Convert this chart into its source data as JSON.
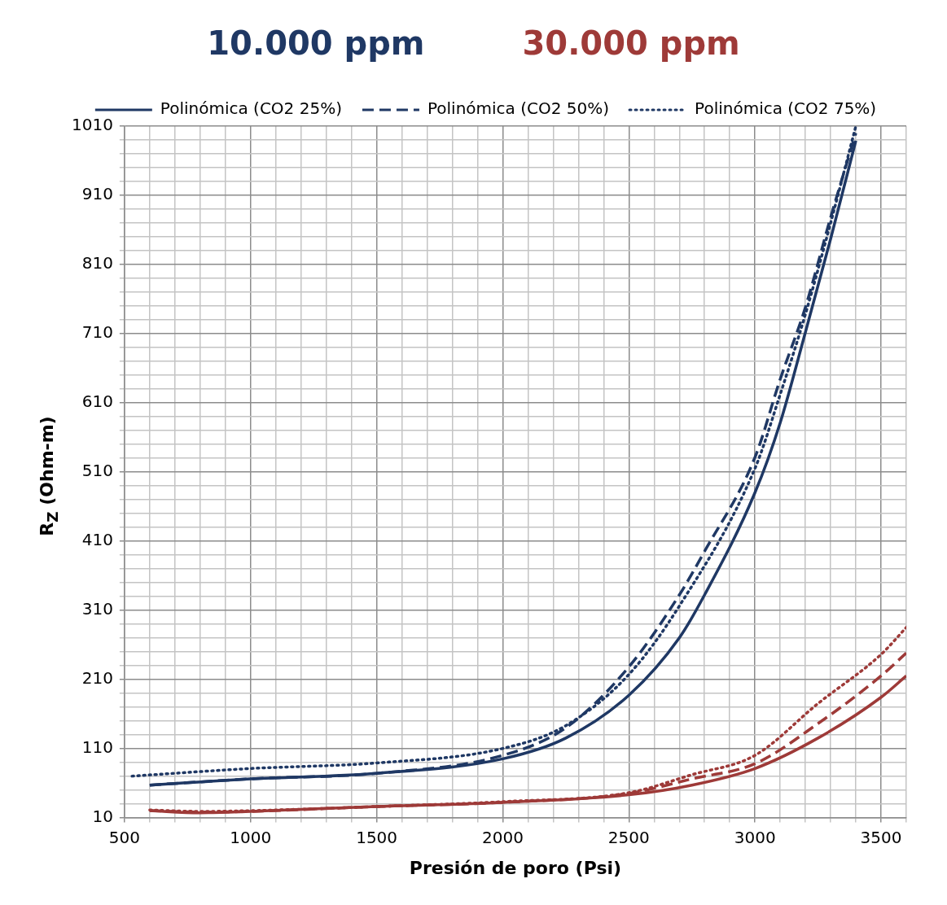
{
  "chart_data": {
    "type": "line",
    "title": "10.000 ppm",
    "subtitle": "30.000 ppm",
    "xlabel": "Presión de poro (Psi)",
    "ylabel": "R$_{Z}$ (Ohm-m)",
    "xlim": [
      500,
      3600
    ],
    "ylim": [
      10,
      1010
    ],
    "xticks": [
      500,
      {
        "value": 600,
        "label": null
      },
      {
        "value": 700,
        "label": null
      },
      {
        "value": 800,
        "label": null
      },
      {
        "value": 900,
        "label": null
      },
      1000,
      {
        "value": 1100,
        "label": null
      },
      {
        "value": 1200,
        "label": null
      },
      {
        "value": 1300,
        "label": null
      },
      {
        "value": 1400,
        "label": null
      },
      1500,
      {
        "value": 1600,
        "label": null
      },
      {
        "value": 1700,
        "label": null
      },
      {
        "value": 1800,
        "label": null
      },
      {
        "value": 1900,
        "label": null
      },
      2000,
      {
        "value": 2100,
        "label": null
      },
      {
        "value": 2200,
        "label": null
      },
      {
        "value": 2300,
        "label": null
      },
      {
        "value": 2400,
        "label": null
      },
      2500,
      {
        "value": 2600,
        "label": null
      },
      {
        "value": 2700,
        "label": null
      },
      {
        "value": 2800,
        "label": null
      },
      {
        "value": 2900,
        "label": null
      },
      3000,
      {
        "value": 3100,
        "label": null
      },
      {
        "value": 3200,
        "label": null
      },
      {
        "value": 3300,
        "label": null
      },
      {
        "value": 3400,
        "label": null
      },
      3500,
      {
        "value": 3600,
        "label": null
      }
    ],
    "yticks": [
      10,
      {
        "value": 30,
        "label": null
      },
      {
        "value": 50,
        "label": null
      },
      {
        "value": 70,
        "label": null
      },
      {
        "value": 90,
        "label": null
      },
      110,
      {
        "value": 130,
        "label": null
      },
      {
        "value": 150,
        "label": null
      },
      {
        "value": 170,
        "label": null
      },
      {
        "value": 190,
        "label": null
      },
      210,
      {
        "value": 230,
        "label": null
      },
      {
        "value": 250,
        "label": null
      },
      {
        "value": 270,
        "label": null
      },
      {
        "value": 290,
        "label": null
      },
      310,
      {
        "value": 330,
        "label": null
      },
      {
        "value": 350,
        "label": null
      },
      {
        "value": 370,
        "label": null
      },
      {
        "value": 390,
        "label": null
      },
      410,
      {
        "value": 430,
        "label": null
      },
      {
        "value": 450,
        "label": null
      },
      {
        "value": 470,
        "label": null
      },
      {
        "value": 490,
        "label": null
      },
      510,
      {
        "value": 530,
        "label": null
      },
      {
        "value": 550,
        "label": null
      },
      {
        "value": 570,
        "label": null
      },
      {
        "value": 590,
        "label": null
      },
      610,
      {
        "value": 630,
        "label": null
      },
      {
        "value": 650,
        "label": null
      },
      {
        "value": 670,
        "label": null
      },
      {
        "value": 690,
        "label": null
      },
      710,
      {
        "value": 730,
        "label": null
      },
      {
        "value": 750,
        "label": null
      },
      {
        "value": 770,
        "label": null
      },
      {
        "value": 790,
        "label": null
      },
      810,
      {
        "value": 830,
        "label": null
      },
      {
        "value": 850,
        "label": null
      },
      {
        "value": 870,
        "label": null
      },
      {
        "value": 890,
        "label": null
      },
      910,
      {
        "value": 930,
        "label": null
      },
      {
        "value": 950,
        "label": null
      },
      {
        "value": 970,
        "label": null
      },
      {
        "value": 990,
        "label": null
      },
      1010
    ],
    "grid": true,
    "legend": "top",
    "marker": "none",
    "series": [
      {
        "name": "Polinómica (CO2 25%)",
        "color": "#1f3864",
        "line_style": "solid",
        "x": [
          600,
          1000,
          1500,
          2000,
          2250,
          2500,
          2700,
          2800,
          3000,
          3100,
          3200,
          3300,
          3400
        ],
        "values": [
          57,
          66,
          74,
          95,
          125,
          187,
          270,
          332,
          480,
          581,
          712,
          847,
          989
        ]
      },
      {
        "name": "Polinómica (CO2 50%)",
        "color": "#1f3864",
        "line_style": "dashed",
        "x": [
          600,
          1000,
          1500,
          2000,
          2250,
          2500,
          2700,
          2800,
          3000,
          3100,
          3200,
          3300,
          3400
        ],
        "values": [
          57,
          66,
          74,
          100,
          140,
          228,
          332,
          395,
          531,
          644,
          748,
          878,
          1000
        ]
      },
      {
        "name": "Polinómica (CO2 75%)",
        "color": "#1f3864",
        "line_style": "dotted",
        "x": [
          530,
          1000,
          1500,
          2000,
          2250,
          2500,
          2700,
          3000,
          3100,
          3200,
          3300,
          3400
        ],
        "values": [
          70,
          81,
          89,
          110,
          143,
          217,
          316,
          515,
          622,
          738,
          870,
          1010
        ]
      },
      {
        "color": "#9e3a38",
        "line_style": "solid",
        "x": [
          600,
          800,
          1000,
          1500,
          2000,
          2500,
          2750,
          3000,
          3250,
          3500,
          3600
        ],
        "values": [
          20,
          17,
          19,
          26,
          32,
          43,
          57,
          81,
          125,
          184,
          215
        ]
      },
      {
        "color": "#9e3a38",
        "line_style": "dashed",
        "x": [
          600,
          800,
          1000,
          1500,
          2000,
          2500,
          2750,
          3000,
          3250,
          3500,
          3600
        ],
        "values": [
          20,
          18,
          19,
          26,
          32,
          45,
          66,
          88,
          146,
          215,
          248
        ]
      },
      {
        "color": "#9e3a38",
        "line_style": "dotted",
        "x": [
          600,
          800,
          1000,
          1500,
          2000,
          2500,
          2750,
          3000,
          3250,
          3500,
          3600
        ],
        "values": [
          21,
          19,
          20,
          26,
          33,
          46,
          72,
          100,
          175,
          246,
          285
        ]
      }
    ]
  }
}
